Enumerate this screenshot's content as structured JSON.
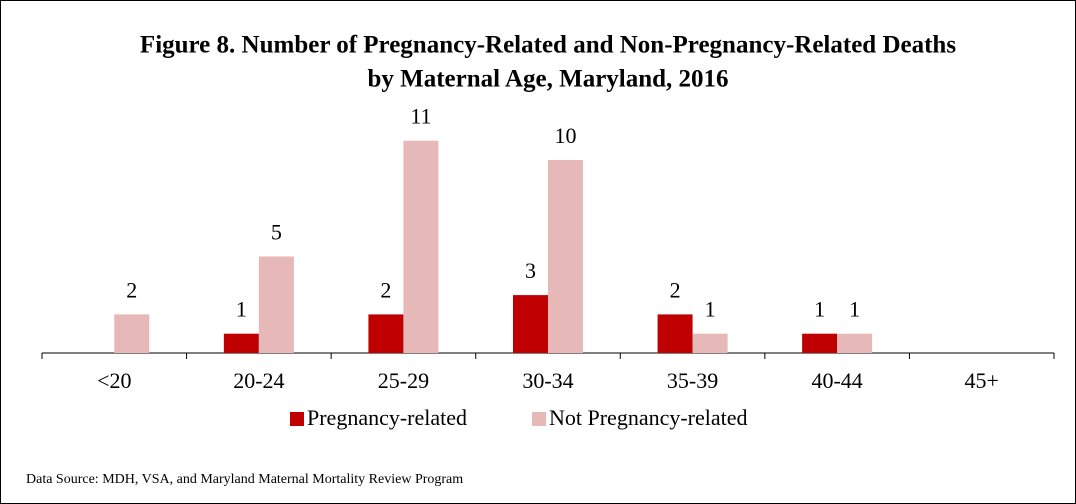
{
  "chart_data": {
    "type": "bar",
    "title": "Figure 8. Number of Pregnancy-Related and Non-Pregnancy-Related Deaths",
    "subtitle": "by Maternal Age, Maryland, 2016",
    "categories": [
      "<20",
      "20-24",
      "25-29",
      "30-34",
      "35-39",
      "40-44",
      "45+"
    ],
    "series": [
      {
        "name": "Pregnancy-related",
        "color": "#c00000",
        "values": [
          null,
          1,
          2,
          3,
          2,
          1,
          null
        ]
      },
      {
        "name": "Not Pregnancy-related",
        "color": "#e6b8b7",
        "values": [
          2,
          5,
          11,
          10,
          1,
          1,
          null
        ]
      }
    ],
    "source": "Data Source: MDH, VSA, and Maryland Maternal Mortality Review Program"
  }
}
